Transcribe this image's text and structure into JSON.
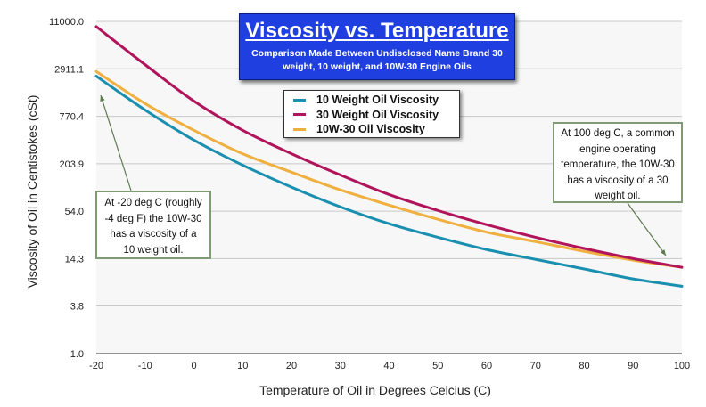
{
  "chart_data": {
    "type": "line",
    "title": "Viscosity vs. Temperature",
    "subtitle": "Comparison Made Between Undisclosed Name Brand 30 weight, 10 weight, and 10W-30 Engine Oils",
    "xlabel": "Temperature of Oil in Degrees Celcius (C)",
    "ylabel": "Viscosity of Oil in Centistokes (cSt)",
    "y_scale": "log",
    "xlim": [
      -20,
      100
    ],
    "ylim": [
      1.0,
      11000.0
    ],
    "x_ticks": [
      "-20",
      "-10",
      "0",
      "10",
      "20",
      "30",
      "40",
      "50",
      "60",
      "70",
      "80",
      "90",
      "100"
    ],
    "y_ticks": [
      "1.0",
      "3.8",
      "14.3",
      "54.0",
      "203.9",
      "770.4",
      "2911.1",
      "11000.0"
    ],
    "y_tick_values": [
      1.0,
      3.8,
      14.3,
      54.0,
      203.9,
      770.4,
      2911.1,
      11000.0
    ],
    "grid": "horizontal",
    "legend_position": "top-center",
    "x": [
      -20,
      -10,
      0,
      10,
      20,
      30,
      40,
      50,
      60,
      70,
      80,
      90,
      100
    ],
    "series": [
      {
        "name": "10 Weight Oil Viscosity",
        "color": "#1a8fb0",
        "values": [
          2370,
          920,
          395,
          196,
          106,
          61,
          38,
          26,
          18.4,
          14,
          10.7,
          8.1,
          6.6
        ]
      },
      {
        "name": "30 Weight Oil Viscosity",
        "color": "#b0145a",
        "values": [
          9500,
          3270,
          1180,
          520,
          270,
          149,
          86,
          55,
          37,
          26,
          19,
          14.3,
          11.2
        ]
      },
      {
        "name": "10W-30 Oil Viscosity",
        "color": "#f0b040",
        "values": [
          2700,
          1100,
          520,
          270,
          161,
          98,
          64,
          43,
          30,
          23,
          17.5,
          13.7,
          11.2
        ]
      }
    ],
    "annotations": [
      {
        "text": "At -20 deg C (roughly -4 deg F) the 10W-30 has a viscosity of a 10 weight oil.",
        "lines": [
          "At -20 deg C (roughly",
          "-4 deg F) the 10W-30",
          "has a viscosity of a",
          "10 weight oil."
        ],
        "points_to": {
          "x": -20,
          "series": "10W-30 Oil Viscosity"
        }
      },
      {
        "text": "At 100 deg C, a common engine operating temperature, the 10W-30 has a viscosity of a 30 weight oil.",
        "lines": [
          "At 100 deg C, a common",
          "engine operating",
          "temperature, the 10W-30",
          "has a viscosity of a 30",
          "weight oil."
        ],
        "points_to": {
          "x": 100,
          "series": "10W-30 Oil Viscosity"
        }
      }
    ]
  },
  "colors": {
    "title_bg": "#1f3fe0",
    "annotation_border": "#7f9a74",
    "plot_bg": "#f7f7f7",
    "grid": "#c8c8c8"
  }
}
